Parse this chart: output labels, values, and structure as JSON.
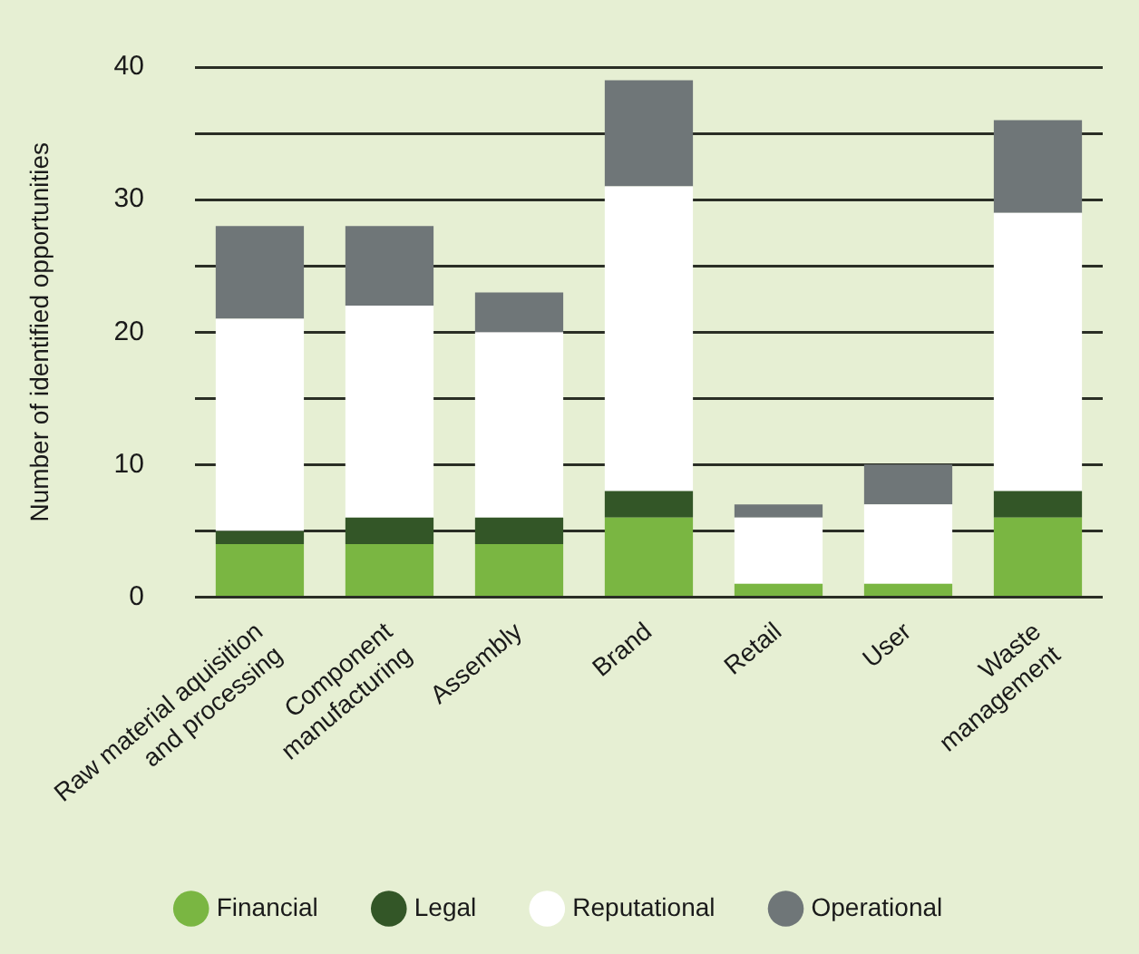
{
  "chart_data": {
    "type": "bar",
    "stacked": true,
    "ylabel": "Number of identified opportunities",
    "categories": [
      "Raw material aquisition\nand processing",
      "Component\nmanufacturing",
      "Assembly",
      "Brand",
      "Retail",
      "User",
      "Waste\nmanagement"
    ],
    "series": [
      {
        "name": "Financial",
        "color": "#7ab642",
        "values": [
          4,
          4,
          4,
          6,
          1,
          1,
          6
        ]
      },
      {
        "name": "Legal",
        "color": "#335627",
        "values": [
          1,
          2,
          2,
          2,
          0,
          0,
          2
        ]
      },
      {
        "name": "Reputational",
        "color": "#ffffff",
        "values": [
          16,
          16,
          14,
          23,
          5,
          6,
          21
        ]
      },
      {
        "name": "Operational",
        "color": "#6f7678",
        "values": [
          7,
          6,
          3,
          8,
          1,
          3,
          7
        ]
      }
    ],
    "ylim": [
      0,
      40
    ],
    "yticks": [
      0,
      {
        "value": 5,
        "label": null
      },
      10,
      {
        "value": 15,
        "label": null
      },
      20,
      {
        "value": 25,
        "label": null
      },
      30,
      {
        "value": 35,
        "label": null
      },
      40
    ],
    "grid": "y",
    "legend": "bottom"
  }
}
